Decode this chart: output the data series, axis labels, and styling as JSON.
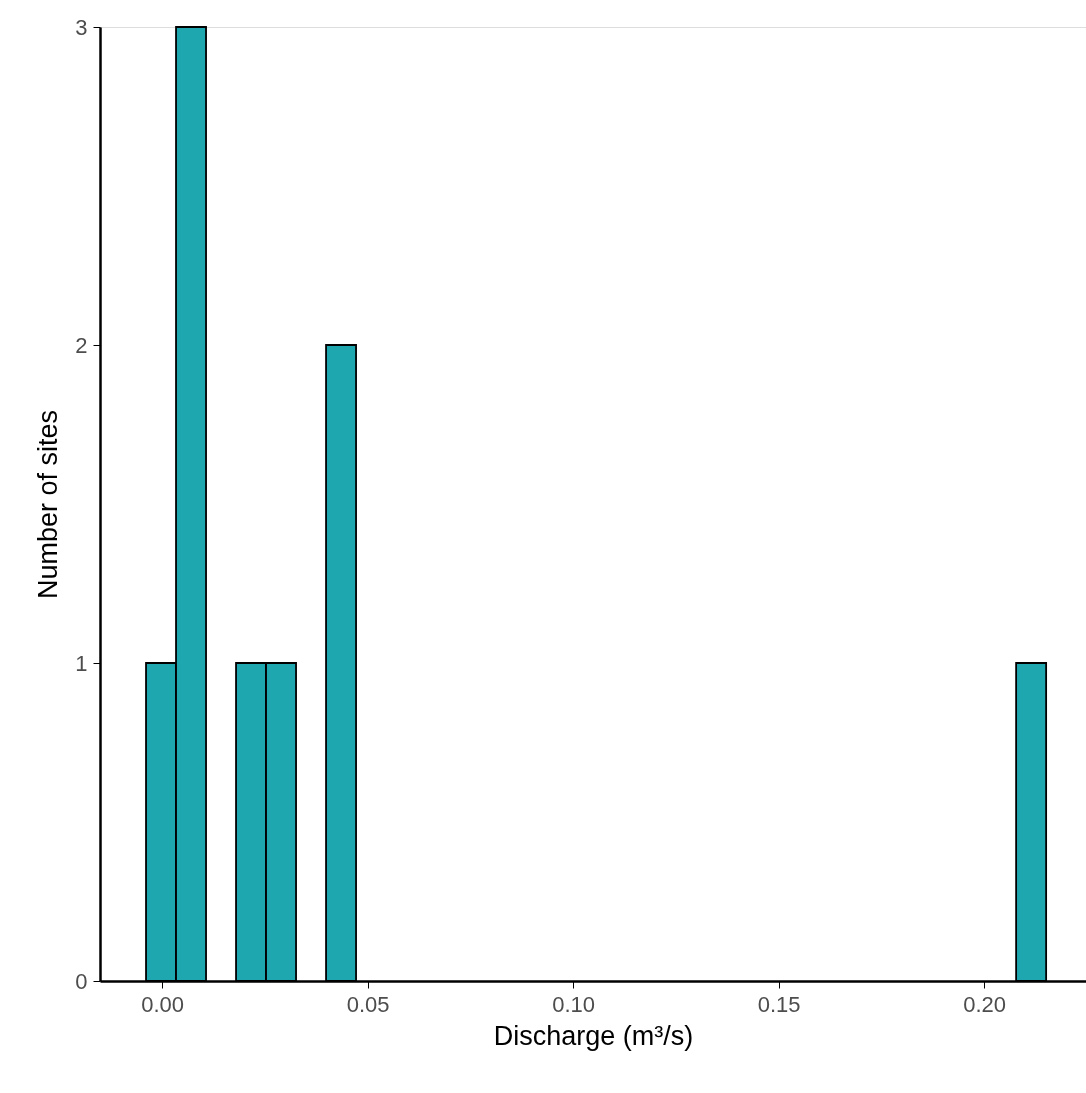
{
  "chart_data": {
    "type": "histogram",
    "xlabel": "Discharge (m³/s)",
    "ylabel": "Number of sites",
    "bins": [
      -0.0039,
      0.0034,
      0.0107,
      0.018,
      0.0253,
      0.0326,
      0.0399,
      0.0472,
      0.0545,
      0.0618,
      0.0691,
      0.0764,
      0.0837,
      0.091,
      0.0983,
      0.1056,
      0.1129,
      0.1202,
      0.1275,
      0.1348,
      0.1421,
      0.1494,
      0.1567,
      0.164,
      0.1713,
      0.1786,
      0.1859,
      0.1932,
      0.2005,
      0.2078,
      0.2151
    ],
    "values": [
      1,
      3,
      0,
      1,
      1,
      0,
      2,
      0,
      0,
      0,
      0,
      0,
      0,
      0,
      0,
      0,
      0,
      0,
      0,
      0,
      0,
      0,
      0,
      0,
      0,
      0,
      0,
      0,
      0,
      1
    ],
    "color": "#1fa7b0",
    "xlim": [
      -0.0151,
      0.2248
    ],
    "xticks": [
      {
        "value": 0,
        "label": "0.00"
      },
      {
        "value": 0.05,
        "label": "0.05"
      },
      {
        "value": 0.1,
        "label": "0.10"
      },
      {
        "value": 0.15,
        "label": "0.15"
      },
      {
        "value": 0.2,
        "label": "0.20"
      }
    ],
    "ylim": [
      0,
      3
    ],
    "yticks": [
      0,
      1,
      2,
      3
    ],
    "grid": false
  }
}
